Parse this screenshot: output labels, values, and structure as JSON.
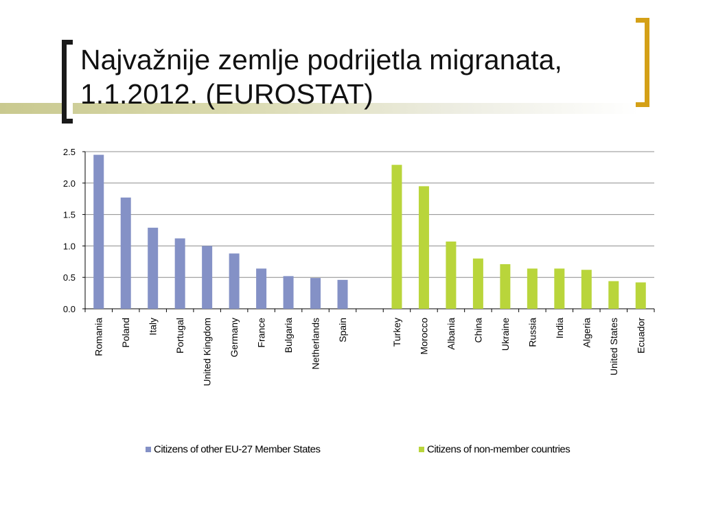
{
  "title": "Najvažnije zemlje podrijetla migranata, 1.1.2012. (EUROSTAT)",
  "colors": {
    "eu": "#8491c6",
    "non_eu": "#b9d53b",
    "bracket_gold": "#d4a017"
  },
  "chart_data": {
    "type": "bar",
    "ylim": [
      0,
      2.5
    ],
    "yticks": [
      "0.0",
      "0.5",
      "1.0",
      "1.5",
      "2.0",
      "2.5"
    ],
    "grid": true,
    "legend_position": "bottom",
    "categories": [
      "Romania",
      "Poland",
      "Italy",
      "Portugal",
      "United Kingdom",
      "Germany",
      "France",
      "Bulgaria",
      "Netherlands",
      "Spain",
      "",
      "Turkey",
      "Morocco",
      "Albania",
      "China",
      "Ukraine",
      "Russia",
      "India",
      "Algeria",
      "United States",
      "Ecuador"
    ],
    "series": [
      {
        "name": "Citizens of other EU-27 Member States",
        "color": "#8491c6",
        "values": [
          2.45,
          1.77,
          1.29,
          1.12,
          1.0,
          0.88,
          0.64,
          0.52,
          0.49,
          0.46,
          null,
          null,
          null,
          null,
          null,
          null,
          null,
          null,
          null,
          null,
          null
        ]
      },
      {
        "name": "Citizens of non-member countries",
        "color": "#b9d53b",
        "values": [
          null,
          null,
          null,
          null,
          null,
          null,
          null,
          null,
          null,
          null,
          null,
          2.29,
          1.95,
          1.07,
          0.8,
          0.71,
          0.64,
          0.64,
          0.62,
          0.44,
          0.42
        ]
      }
    ]
  }
}
